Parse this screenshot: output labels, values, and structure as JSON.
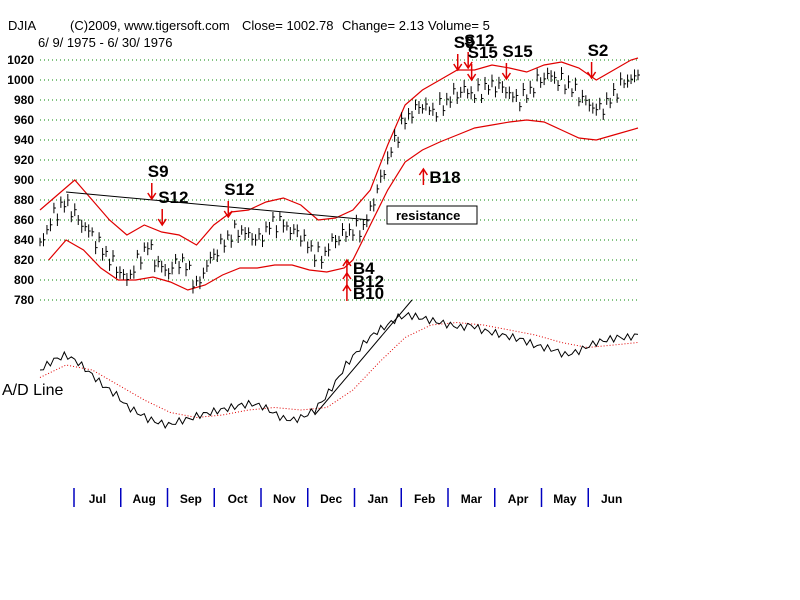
{
  "header": {
    "symbol": "DJIA",
    "copyright": "(C)2009, www.tigersoft.com",
    "close": "Close=  1002.78",
    "change": "Change= 2.13",
    "volume": "Volume= 5",
    "date_range": "6/ 9/ 1975 - 6/ 30/ 1976"
  },
  "lower_panel_label": "A/D Line",
  "annotation_box": "resistance",
  "chart_data": {
    "type": "line",
    "title": "DJIA",
    "ylim": [
      780,
      1020
    ],
    "yticks": [
      780,
      800,
      820,
      840,
      860,
      880,
      900,
      920,
      940,
      960,
      980,
      1000,
      1020
    ],
    "grid": true,
    "months": [
      "Jul",
      "Aug",
      "Sep",
      "Oct",
      "Nov",
      "Dec",
      "Jan",
      "Feb",
      "Mar",
      "Apr",
      "May",
      "Jun"
    ],
    "close_series": [
      [
        0,
        835
      ],
      [
        8,
        865
      ],
      [
        15,
        878
      ],
      [
        22,
        860
      ],
      [
        30,
        845
      ],
      [
        36,
        830
      ],
      [
        44,
        812
      ],
      [
        50,
        800
      ],
      [
        56,
        818
      ],
      [
        62,
        835
      ],
      [
        68,
        815
      ],
      [
        74,
        808
      ],
      [
        80,
        820
      ],
      [
        86,
        810
      ],
      [
        90,
        792
      ],
      [
        96,
        815
      ],
      [
        102,
        830
      ],
      [
        108,
        842
      ],
      [
        114,
        850
      ],
      [
        120,
        845
      ],
      [
        126,
        840
      ],
      [
        132,
        855
      ],
      [
        138,
        858
      ],
      [
        144,
        850
      ],
      [
        150,
        845
      ],
      [
        156,
        830
      ],
      [
        162,
        822
      ],
      [
        168,
        838
      ],
      [
        174,
        845
      ],
      [
        180,
        850
      ],
      [
        186,
        852
      ],
      [
        190,
        870
      ],
      [
        196,
        900
      ],
      [
        202,
        930
      ],
      [
        208,
        955
      ],
      [
        214,
        968
      ],
      [
        220,
        975
      ],
      [
        226,
        968
      ],
      [
        232,
        975
      ],
      [
        238,
        985
      ],
      [
        244,
        990
      ],
      [
        250,
        985
      ],
      [
        256,
        992
      ],
      [
        262,
        995
      ],
      [
        268,
        990
      ],
      [
        274,
        980
      ],
      [
        280,
        985
      ],
      [
        286,
        998
      ],
      [
        292,
        1005
      ],
      [
        298,
        1000
      ],
      [
        304,
        995
      ],
      [
        310,
        985
      ],
      [
        316,
        975
      ],
      [
        322,
        970
      ],
      [
        328,
        980
      ],
      [
        334,
        995
      ],
      [
        340,
        1002
      ],
      [
        344,
        1002.78
      ]
    ],
    "upper_band": [
      [
        0,
        870
      ],
      [
        10,
        885
      ],
      [
        20,
        900
      ],
      [
        30,
        880
      ],
      [
        40,
        860
      ],
      [
        50,
        845
      ],
      [
        60,
        855
      ],
      [
        70,
        848
      ],
      [
        80,
        845
      ],
      [
        90,
        835
      ],
      [
        100,
        855
      ],
      [
        110,
        868
      ],
      [
        120,
        870
      ],
      [
        130,
        878
      ],
      [
        140,
        882
      ],
      [
        150,
        875
      ],
      [
        160,
        860
      ],
      [
        170,
        862
      ],
      [
        180,
        870
      ],
      [
        190,
        890
      ],
      [
        200,
        935
      ],
      [
        210,
        975
      ],
      [
        220,
        990
      ],
      [
        230,
        1000
      ],
      [
        240,
        1010
      ],
      [
        250,
        1010
      ],
      [
        260,
        1015
      ],
      [
        270,
        1012
      ],
      [
        280,
        1008
      ],
      [
        290,
        1015
      ],
      [
        300,
        1018
      ],
      [
        310,
        1012
      ],
      [
        320,
        1000
      ],
      [
        330,
        1010
      ],
      [
        340,
        1020
      ],
      [
        344,
        1022
      ]
    ],
    "lower_band": [
      [
        5,
        820
      ],
      [
        15,
        840
      ],
      [
        25,
        830
      ],
      [
        35,
        812
      ],
      [
        45,
        800
      ],
      [
        55,
        800
      ],
      [
        65,
        803
      ],
      [
        75,
        798
      ],
      [
        85,
        790
      ],
      [
        95,
        795
      ],
      [
        105,
        805
      ],
      [
        115,
        812
      ],
      [
        125,
        812
      ],
      [
        135,
        815
      ],
      [
        145,
        815
      ],
      [
        155,
        810
      ],
      [
        165,
        808
      ],
      [
        175,
        812
      ],
      [
        180,
        820
      ],
      [
        190,
        855
      ],
      [
        200,
        890
      ],
      [
        210,
        918
      ],
      [
        220,
        930
      ],
      [
        230,
        938
      ],
      [
        240,
        945
      ],
      [
        250,
        952
      ],
      [
        260,
        955
      ],
      [
        270,
        958
      ],
      [
        280,
        960
      ],
      [
        290,
        958
      ],
      [
        300,
        950
      ],
      [
        310,
        942
      ],
      [
        320,
        940
      ],
      [
        330,
        945
      ],
      [
        344,
        952
      ]
    ],
    "signals": [
      {
        "label": "S9",
        "x": 62,
        "y": 903,
        "kind": "sell"
      },
      {
        "label": "S12",
        "x": 68,
        "y": 877,
        "kind": "sell"
      },
      {
        "label": "S12",
        "x": 106,
        "y": 885,
        "kind": "sell"
      },
      {
        "label": "B4",
        "x": 180,
        "y": 806,
        "kind": "buy"
      },
      {
        "label": "B12",
        "x": 180,
        "y": 793,
        "kind": "buy"
      },
      {
        "label": "B10",
        "x": 180,
        "y": 781,
        "kind": "buy"
      },
      {
        "label": "B18",
        "x": 224,
        "y": 897,
        "kind": "buy"
      },
      {
        "label": "S9",
        "x": 238,
        "y": 1032,
        "kind": "sell"
      },
      {
        "label": "S12",
        "x": 244,
        "y": 1034,
        "kind": "sell"
      },
      {
        "label": "S15",
        "x": 246,
        "y": 1022,
        "kind": "sell"
      },
      {
        "label": "S15",
        "x": 266,
        "y": 1023,
        "kind": "sell"
      },
      {
        "label": "S2",
        "x": 315,
        "y": 1024,
        "kind": "sell"
      }
    ],
    "trendline": [
      [
        15,
        888
      ],
      [
        190,
        860
      ]
    ],
    "ad_line": [
      [
        0,
        44
      ],
      [
        8,
        52
      ],
      [
        15,
        56
      ],
      [
        22,
        50
      ],
      [
        30,
        40
      ],
      [
        36,
        32
      ],
      [
        44,
        24
      ],
      [
        50,
        15
      ],
      [
        56,
        10
      ],
      [
        62,
        5
      ],
      [
        68,
        2
      ],
      [
        74,
        0
      ],
      [
        80,
        3
      ],
      [
        86,
        5
      ],
      [
        92,
        8
      ],
      [
        98,
        10
      ],
      [
        104,
        12
      ],
      [
        110,
        14
      ],
      [
        116,
        16
      ],
      [
        122,
        17
      ],
      [
        128,
        15
      ],
      [
        134,
        10
      ],
      [
        140,
        5
      ],
      [
        146,
        4
      ],
      [
        152,
        7
      ],
      [
        158,
        12
      ],
      [
        164,
        22
      ],
      [
        170,
        34
      ],
      [
        176,
        48
      ],
      [
        182,
        58
      ],
      [
        188,
        68
      ],
      [
        194,
        75
      ],
      [
        200,
        80
      ],
      [
        206,
        86
      ],
      [
        212,
        88
      ],
      [
        218,
        86
      ],
      [
        224,
        84
      ],
      [
        230,
        82
      ],
      [
        236,
        80
      ],
      [
        242,
        78
      ],
      [
        248,
        80
      ],
      [
        254,
        76
      ],
      [
        260,
        74
      ],
      [
        266,
        72
      ],
      [
        272,
        70
      ],
      [
        278,
        68
      ],
      [
        284,
        64
      ],
      [
        290,
        62
      ],
      [
        296,
        60
      ],
      [
        302,
        56
      ],
      [
        308,
        58
      ],
      [
        314,
        62
      ],
      [
        320,
        66
      ],
      [
        326,
        68
      ],
      [
        332,
        70
      ],
      [
        338,
        70
      ],
      [
        344,
        72
      ]
    ],
    "ad_ma": [
      [
        0,
        38
      ],
      [
        15,
        48
      ],
      [
        30,
        44
      ],
      [
        45,
        32
      ],
      [
        60,
        20
      ],
      [
        75,
        10
      ],
      [
        90,
        6
      ],
      [
        105,
        8
      ],
      [
        120,
        12
      ],
      [
        135,
        14
      ],
      [
        150,
        12
      ],
      [
        165,
        14
      ],
      [
        180,
        28
      ],
      [
        195,
        50
      ],
      [
        210,
        70
      ],
      [
        225,
        80
      ],
      [
        240,
        82
      ],
      [
        255,
        80
      ],
      [
        270,
        76
      ],
      [
        285,
        72
      ],
      [
        300,
        66
      ],
      [
        315,
        62
      ],
      [
        330,
        64
      ],
      [
        344,
        66
      ]
    ],
    "ad_trendline": [
      [
        158,
        8
      ],
      [
        214,
        100
      ]
    ]
  }
}
